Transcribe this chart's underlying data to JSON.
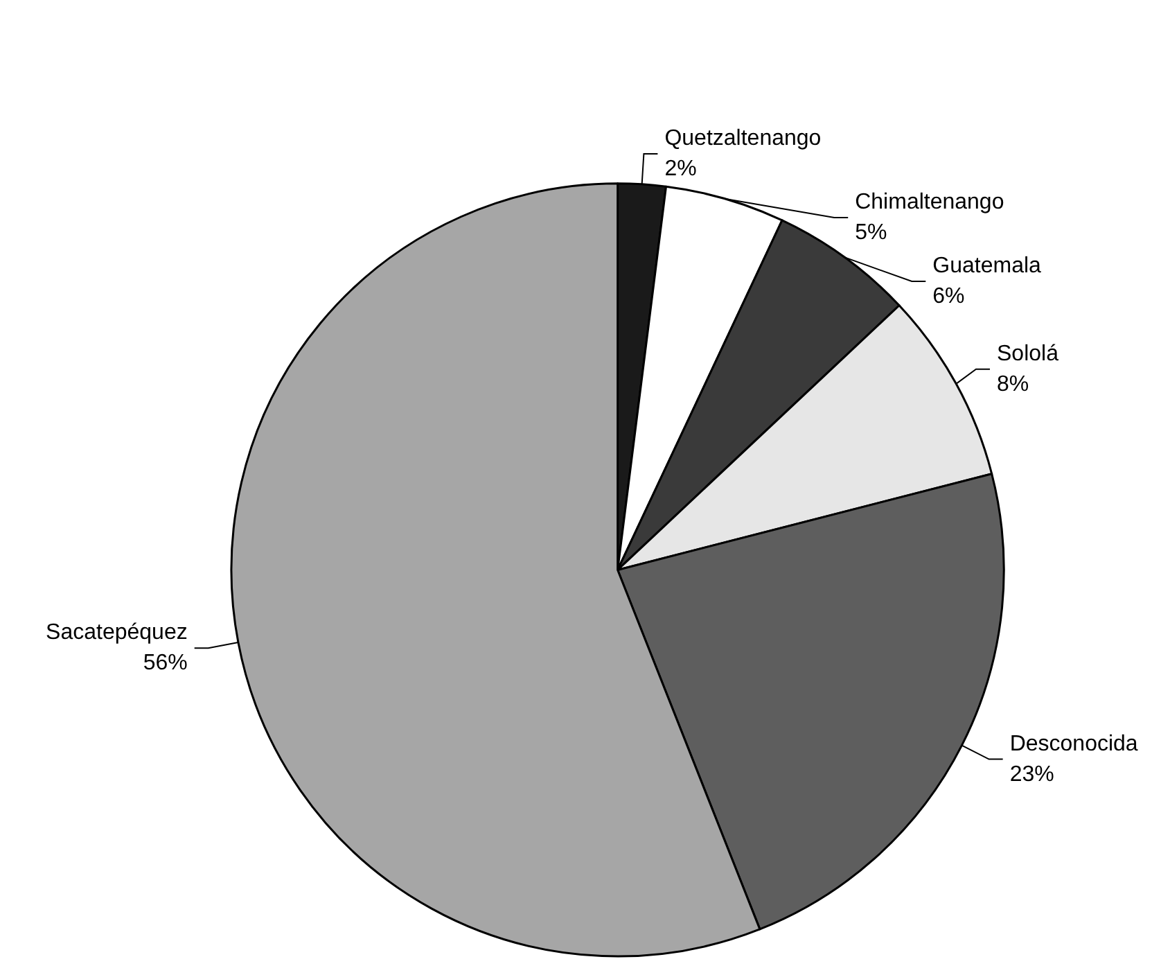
{
  "chart_data": {
    "type": "pie",
    "categories": [
      "Quetzaltenango",
      "Chimaltenango",
      "Guatemala",
      "Sololá",
      "Desconocida",
      "Sacatepéquez"
    ],
    "values": [
      2,
      5,
      6,
      8,
      23,
      56
    ],
    "value_labels": [
      "2%",
      "5%",
      "6%",
      "8%",
      "23%",
      "56%"
    ],
    "colors": [
      "#1a1a1a",
      "#ffffff",
      "#3a3a3a",
      "#e6e6e6",
      "#5e5e5e",
      "#a6a6a6"
    ],
    "legend": false
  }
}
